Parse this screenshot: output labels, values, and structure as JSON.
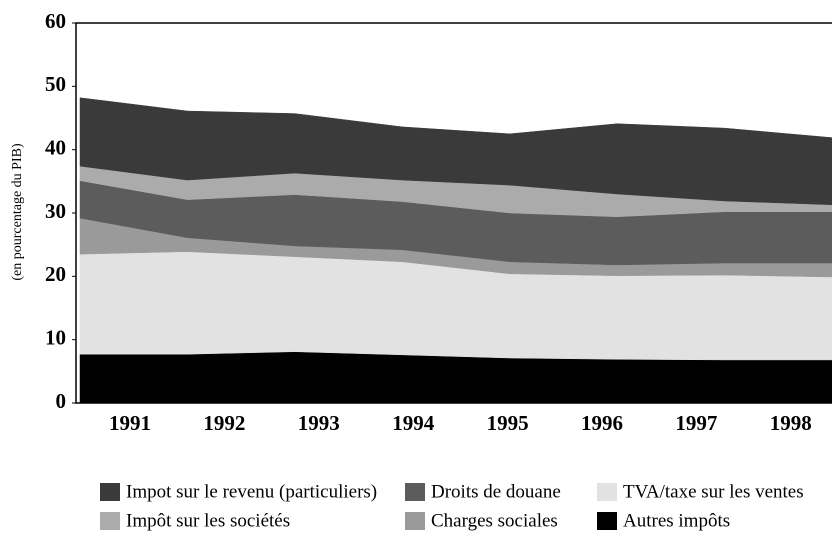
{
  "chart_data": {
    "type": "stacked_area",
    "y_label": "(en pourcentage du PIB)",
    "categories": [
      "1991",
      "1992",
      "1993",
      "1994",
      "1995",
      "1996",
      "1997",
      "1998"
    ],
    "series": [
      {
        "name": "Autres impôts",
        "color": "#000000",
        "values": [
          7.7,
          7.7,
          8.1,
          7.6,
          7.1,
          6.9,
          6.8,
          6.8
        ]
      },
      {
        "name": "TVA/taxe sur les ventes",
        "color": "#e2e2e2",
        "values": [
          15.8,
          16.2,
          15.0,
          14.7,
          13.3,
          13.2,
          13.4,
          13.1
        ]
      },
      {
        "name": "Charges sociales",
        "color": "#9a9a9a",
        "values": [
          5.7,
          2.2,
          1.7,
          1.9,
          1.9,
          1.7,
          1.9,
          2.2
        ]
      },
      {
        "name": "Droits de douane",
        "color": "#5c5c5c",
        "values": [
          5.9,
          6.0,
          8.1,
          7.6,
          7.7,
          7.6,
          8.1,
          8.1
        ]
      },
      {
        "name": "Impôt sur les sociétés",
        "color": "#ababab",
        "values": [
          2.3,
          3.1,
          3.4,
          3.4,
          4.4,
          3.6,
          1.7,
          1.1
        ]
      },
      {
        "name": "Impot sur le revenu (particuliers)",
        "color": "#3a3a3a",
        "values": [
          10.8,
          10.9,
          9.4,
          8.4,
          8.1,
          11.1,
          11.5,
          10.6
        ]
      }
    ],
    "ylim": [
      0,
      60
    ],
    "yticks": [
      0,
      10,
      20,
      30,
      40,
      50,
      60
    ]
  }
}
